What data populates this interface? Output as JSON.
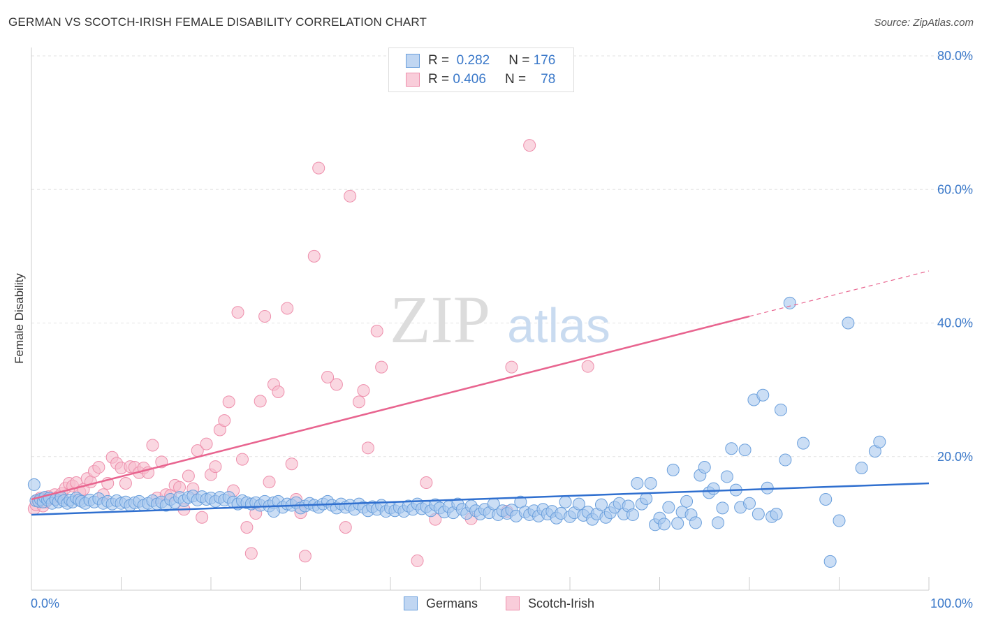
{
  "header": {
    "title": "GERMAN VS SCOTCH-IRISH FEMALE DISABILITY CORRELATION CHART",
    "source": "Source: ZipAtlas.com"
  },
  "watermark": {
    "zip": "ZIP",
    "atlas": "atlas"
  },
  "legend_stats": {
    "rows": [
      {
        "r_label": "R =",
        "r_value": "0.282",
        "n_label": "N =",
        "n_value": "176",
        "color": "#5b9bd5"
      },
      {
        "r_label": "R =",
        "r_value": "0.406",
        "n_label": "N =",
        "n_value": "78",
        "color": "#f06292"
      }
    ]
  },
  "bottom_legend": {
    "germans": "Germans",
    "scotch_irish": "Scotch-Irish"
  },
  "colors": {
    "blue_fill": "#a9c8ef",
    "blue_stroke": "#6a9fdc",
    "blue_line": "#2f6fcf",
    "pink_fill": "#f7bccd",
    "pink_stroke": "#ee8fac",
    "pink_line": "#e8648f",
    "axis_tick_label": "#3a78c9",
    "grid": "#e2e2e2"
  },
  "chart_data": {
    "type": "scatter",
    "title": "GERMAN VS SCOTCH-IRISH FEMALE DISABILITY CORRELATION CHART",
    "xlabel": "",
    "ylabel": "Female Disability",
    "xlim": [
      0,
      100
    ],
    "ylim": [
      0,
      80
    ],
    "x_tick_labels": [
      "0.0%",
      "100.0%"
    ],
    "y_ticks": [
      20,
      40,
      60,
      80
    ],
    "y_tick_labels": [
      "20.0%",
      "40.0%",
      "60.0%",
      "80.0%"
    ],
    "grid": true,
    "legend_placement": "top-center",
    "series": [
      {
        "name": "Germans",
        "R": 0.282,
        "N": 176,
        "trend": {
          "x": [
            0,
            100
          ],
          "y": [
            11.3,
            16.0
          ]
        },
        "points": [
          [
            0.3,
            15.8
          ],
          [
            0.5,
            13.4
          ],
          [
            0.8,
            13.3
          ],
          [
            1.0,
            13.6
          ],
          [
            1.3,
            13.2
          ],
          [
            1.5,
            13.9
          ],
          [
            1.8,
            13.5
          ],
          [
            2.0,
            13.8
          ],
          [
            2.3,
            13.0
          ],
          [
            2.7,
            13.6
          ],
          [
            3.0,
            13.2
          ],
          [
            3.3,
            13.9
          ],
          [
            3.6,
            13.4
          ],
          [
            4.0,
            13.0
          ],
          [
            4.3,
            13.5
          ],
          [
            4.6,
            13.2
          ],
          [
            5.0,
            13.8
          ],
          [
            5.3,
            13.5
          ],
          [
            5.6,
            13.3
          ],
          [
            6.0,
            13.0
          ],
          [
            6.5,
            13.5
          ],
          [
            7.0,
            13.2
          ],
          [
            7.5,
            13.7
          ],
          [
            8.0,
            13.0
          ],
          [
            8.5,
            13.3
          ],
          [
            9.0,
            12.9
          ],
          [
            9.5,
            13.4
          ],
          [
            10.0,
            13.0
          ],
          [
            10.5,
            13.2
          ],
          [
            11.0,
            12.7
          ],
          [
            11.5,
            13.1
          ],
          [
            12.0,
            13.3
          ],
          [
            12.5,
            12.7
          ],
          [
            13.0,
            13.0
          ],
          [
            13.5,
            13.4
          ],
          [
            14.0,
            12.9
          ],
          [
            14.5,
            13.2
          ],
          [
            15.0,
            12.7
          ],
          [
            15.5,
            13.6
          ],
          [
            16.0,
            13.1
          ],
          [
            16.5,
            13.9
          ],
          [
            17.0,
            13.4
          ],
          [
            17.5,
            13.9
          ],
          [
            18.0,
            14.1
          ],
          [
            18.5,
            13.5
          ],
          [
            19.0,
            14.0
          ],
          [
            19.5,
            13.6
          ],
          [
            20.0,
            13.8
          ],
          [
            20.5,
            13.3
          ],
          [
            21.0,
            13.9
          ],
          [
            21.5,
            13.5
          ],
          [
            22.0,
            13.9
          ],
          [
            22.5,
            13.2
          ],
          [
            23.0,
            12.9
          ],
          [
            23.5,
            13.4
          ],
          [
            24.0,
            13.1
          ],
          [
            24.5,
            12.9
          ],
          [
            25.0,
            13.1
          ],
          [
            25.5,
            12.7
          ],
          [
            26.0,
            13.3
          ],
          [
            26.5,
            12.6
          ],
          [
            27.0,
            13.1
          ],
          [
            27.5,
            13.3
          ],
          [
            28.0,
            12.4
          ],
          [
            28.5,
            12.9
          ],
          [
            29.0,
            12.7
          ],
          [
            29.5,
            13.1
          ],
          [
            30.0,
            12.3
          ],
          [
            30.5,
            12.6
          ],
          [
            31.0,
            13.0
          ],
          [
            31.5,
            12.7
          ],
          [
            32.0,
            12.4
          ],
          [
            32.5,
            12.9
          ],
          [
            33.0,
            13.3
          ],
          [
            33.5,
            12.7
          ],
          [
            34.0,
            12.3
          ],
          [
            34.5,
            12.9
          ],
          [
            35.0,
            12.4
          ],
          [
            35.5,
            12.7
          ],
          [
            36.0,
            12.1
          ],
          [
            36.5,
            12.9
          ],
          [
            37.0,
            12.4
          ],
          [
            37.5,
            11.9
          ],
          [
            38.0,
            12.5
          ],
          [
            38.5,
            12.1
          ],
          [
            39.0,
            12.7
          ],
          [
            39.5,
            11.8
          ],
          [
            40.0,
            12.3
          ],
          [
            40.5,
            11.9
          ],
          [
            41.0,
            12.4
          ],
          [
            41.5,
            11.8
          ],
          [
            42.0,
            12.6
          ],
          [
            42.5,
            12.1
          ],
          [
            43.0,
            12.9
          ],
          [
            43.5,
            12.2
          ],
          [
            44.0,
            12.5
          ],
          [
            44.5,
            11.9
          ],
          [
            45.0,
            12.8
          ],
          [
            45.5,
            12.3
          ],
          [
            46.0,
            11.7
          ],
          [
            46.5,
            12.5
          ],
          [
            47.0,
            11.6
          ],
          [
            47.5,
            12.9
          ],
          [
            48.0,
            12.1
          ],
          [
            48.5,
            11.5
          ],
          [
            49.0,
            12.6
          ],
          [
            49.5,
            11.9
          ],
          [
            50.0,
            11.4
          ],
          [
            50.5,
            12.1
          ],
          [
            51.0,
            11.6
          ],
          [
            51.5,
            12.9
          ],
          [
            52.0,
            11.3
          ],
          [
            52.5,
            11.9
          ],
          [
            53.0,
            11.5
          ],
          [
            53.5,
            12.0
          ],
          [
            54.0,
            11.1
          ],
          [
            54.5,
            13.2
          ],
          [
            55.0,
            11.7
          ],
          [
            55.5,
            11.3
          ],
          [
            56.0,
            11.9
          ],
          [
            56.5,
            11.1
          ],
          [
            57.0,
            12.1
          ],
          [
            57.5,
            11.4
          ],
          [
            58.0,
            11.8
          ],
          [
            58.5,
            10.8
          ],
          [
            59.0,
            11.5
          ],
          [
            59.5,
            13.2
          ],
          [
            60.0,
            11.0
          ],
          [
            60.5,
            11.6
          ],
          [
            61.0,
            12.9
          ],
          [
            61.5,
            11.2
          ],
          [
            62.0,
            11.7
          ],
          [
            62.5,
            10.6
          ],
          [
            63.0,
            11.4
          ],
          [
            63.5,
            12.8
          ],
          [
            64.0,
            10.9
          ],
          [
            64.5,
            11.6
          ],
          [
            65.0,
            12.4
          ],
          [
            65.5,
            13.0
          ],
          [
            66.0,
            11.4
          ],
          [
            66.5,
            12.6
          ],
          [
            67.0,
            11.3
          ],
          [
            67.5,
            16.0
          ],
          [
            68.0,
            12.9
          ],
          [
            68.5,
            13.7
          ],
          [
            69.0,
            16.0
          ],
          [
            69.5,
            9.8
          ],
          [
            70.0,
            10.8
          ],
          [
            70.5,
            9.9
          ],
          [
            71.0,
            12.4
          ],
          [
            71.5,
            18.0
          ],
          [
            72.0,
            10.0
          ],
          [
            72.5,
            11.7
          ],
          [
            73.0,
            13.3
          ],
          [
            73.5,
            11.3
          ],
          [
            74.0,
            10.1
          ],
          [
            74.5,
            17.2
          ],
          [
            75.0,
            18.4
          ],
          [
            75.5,
            14.6
          ],
          [
            76.0,
            15.2
          ],
          [
            76.5,
            10.1
          ],
          [
            77.0,
            12.3
          ],
          [
            77.5,
            17.0
          ],
          [
            78.0,
            21.2
          ],
          [
            78.5,
            15.0
          ],
          [
            79.0,
            12.4
          ],
          [
            79.5,
            21.0
          ],
          [
            80.0,
            13.0
          ],
          [
            80.5,
            28.5
          ],
          [
            81.0,
            11.4
          ],
          [
            81.5,
            29.2
          ],
          [
            82.0,
            15.3
          ],
          [
            82.5,
            11.0
          ],
          [
            83.0,
            11.4
          ],
          [
            83.5,
            27.0
          ],
          [
            84.0,
            19.5
          ],
          [
            84.5,
            43.0
          ],
          [
            86.0,
            22.0
          ],
          [
            88.5,
            13.6
          ],
          [
            89.0,
            4.3
          ],
          [
            90.0,
            10.4
          ],
          [
            91.0,
            40.0
          ],
          [
            92.5,
            18.3
          ],
          [
            94.0,
            20.8
          ],
          [
            94.5,
            22.2
          ],
          [
            27.0,
            11.8
          ]
        ]
      },
      {
        "name": "Scotch-Irish",
        "R": 0.406,
        "N": 78,
        "trend": {
          "x": [
            0,
            80
          ],
          "y": [
            13.6,
            41.0
          ]
        },
        "trend_dashed": {
          "x": [
            80,
            100
          ],
          "y": [
            41.0,
            47.8
          ]
        },
        "points": [
          [
            0.3,
            12.2
          ],
          [
            0.5,
            12.8
          ],
          [
            0.7,
            13.5
          ],
          [
            1.0,
            13.8
          ],
          [
            1.3,
            12.6
          ],
          [
            1.6,
            13.2
          ],
          [
            1.9,
            14.0
          ],
          [
            2.2,
            13.7
          ],
          [
            2.6,
            14.3
          ],
          [
            3.0,
            14.0
          ],
          [
            3.4,
            14.5
          ],
          [
            3.8,
            15.3
          ],
          [
            4.2,
            16.0
          ],
          [
            4.6,
            15.6
          ],
          [
            5.0,
            16.1
          ],
          [
            5.4,
            14.7
          ],
          [
            5.8,
            15.1
          ],
          [
            6.2,
            16.7
          ],
          [
            6.6,
            16.2
          ],
          [
            7.0,
            17.8
          ],
          [
            7.5,
            18.4
          ],
          [
            8.0,
            14.3
          ],
          [
            8.5,
            16.0
          ],
          [
            9.0,
            19.9
          ],
          [
            9.5,
            19.0
          ],
          [
            10.0,
            18.3
          ],
          [
            10.5,
            16.0
          ],
          [
            11.0,
            18.5
          ],
          [
            11.5,
            18.4
          ],
          [
            12.0,
            17.6
          ],
          [
            12.5,
            18.3
          ],
          [
            13.0,
            17.6
          ],
          [
            13.5,
            21.7
          ],
          [
            14.0,
            13.8
          ],
          [
            14.5,
            19.2
          ],
          [
            15.0,
            14.3
          ],
          [
            15.5,
            14.2
          ],
          [
            16.0,
            15.7
          ],
          [
            16.5,
            15.4
          ],
          [
            17.0,
            12.1
          ],
          [
            17.5,
            17.1
          ],
          [
            18.0,
            15.2
          ],
          [
            18.5,
            20.9
          ],
          [
            19.0,
            10.9
          ],
          [
            19.5,
            21.9
          ],
          [
            20.0,
            17.3
          ],
          [
            20.5,
            18.5
          ],
          [
            21.0,
            24.0
          ],
          [
            21.5,
            25.4
          ],
          [
            22.0,
            28.2
          ],
          [
            22.5,
            14.9
          ],
          [
            23.0,
            41.6
          ],
          [
            23.5,
            19.6
          ],
          [
            24.0,
            9.4
          ],
          [
            24.5,
            5.5
          ],
          [
            25.0,
            11.5
          ],
          [
            25.5,
            28.3
          ],
          [
            26.0,
            41.0
          ],
          [
            26.5,
            16.2
          ],
          [
            27.0,
            30.8
          ],
          [
            27.5,
            29.7
          ],
          [
            28.5,
            42.2
          ],
          [
            29.0,
            18.9
          ],
          [
            29.5,
            13.6
          ],
          [
            30.0,
            11.6
          ],
          [
            30.5,
            5.1
          ],
          [
            31.5,
            50.0
          ],
          [
            32.0,
            63.2
          ],
          [
            33.0,
            31.9
          ],
          [
            34.0,
            30.8
          ],
          [
            35.0,
            9.4
          ],
          [
            35.5,
            59.0
          ],
          [
            36.5,
            28.2
          ],
          [
            37.0,
            29.9
          ],
          [
            37.5,
            21.3
          ],
          [
            38.5,
            38.8
          ],
          [
            39.0,
            33.4
          ],
          [
            43.0,
            4.4
          ],
          [
            44.0,
            16.1
          ],
          [
            45.0,
            10.6
          ],
          [
            49.0,
            10.7
          ],
          [
            53.0,
            11.8
          ],
          [
            53.5,
            33.4
          ],
          [
            55.5,
            66.6
          ],
          [
            62.0,
            33.5
          ]
        ]
      }
    ]
  }
}
